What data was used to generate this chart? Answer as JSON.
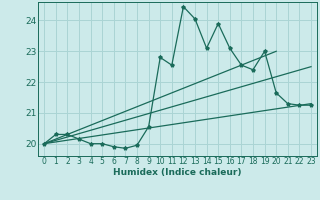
{
  "xlabel": "Humidex (Indice chaleur)",
  "bg_color": "#cceaea",
  "grid_color": "#aad4d4",
  "line_color": "#1a6b5a",
  "xlim": [
    -0.5,
    23.5
  ],
  "ylim": [
    19.6,
    24.6
  ],
  "yticks": [
    20,
    21,
    22,
    23,
    24
  ],
  "xticks": [
    0,
    1,
    2,
    3,
    4,
    5,
    6,
    7,
    8,
    9,
    10,
    11,
    12,
    13,
    14,
    15,
    16,
    17,
    18,
    19,
    20,
    21,
    22,
    23
  ],
  "series1_x": [
    0,
    1,
    2,
    3,
    4,
    5,
    6,
    7,
    8,
    9,
    10,
    11,
    12,
    13,
    14,
    15,
    16,
    17,
    18,
    19,
    20,
    21,
    22,
    23
  ],
  "series1_y": [
    20.0,
    20.3,
    20.3,
    20.15,
    20.0,
    20.0,
    19.9,
    19.85,
    19.95,
    20.55,
    22.8,
    22.55,
    24.45,
    24.05,
    23.1,
    23.9,
    23.1,
    22.55,
    22.4,
    23.0,
    21.65,
    21.3,
    21.25,
    21.25
  ],
  "series2_x": [
    0,
    23
  ],
  "series2_y": [
    20.0,
    21.3
  ],
  "series3_x": [
    0,
    20
  ],
  "series3_y": [
    20.0,
    23.0
  ],
  "series4_x": [
    0,
    23
  ],
  "series4_y": [
    20.0,
    22.5
  ]
}
